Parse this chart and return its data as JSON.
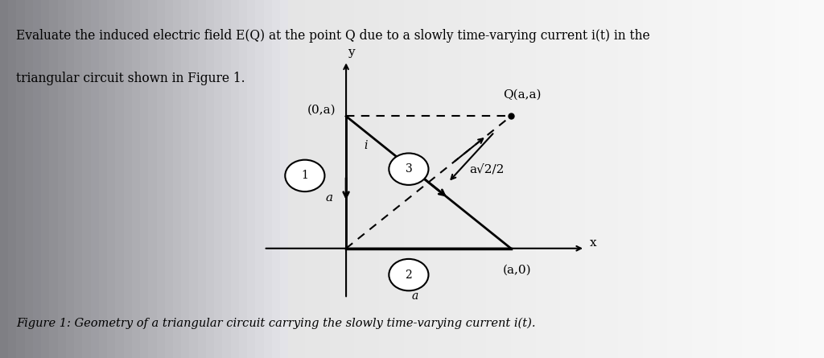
{
  "fig_width": 10.24,
  "fig_height": 4.45,
  "bg_left_color": "#8a8a9a",
  "bg_right_color": "#d8d8d8",
  "bg_mid_color": "#e8e8ea",
  "title_text_line1": "Evaluate the induced electric field E(Q) at the point Q due to a slowly time-varying current i(t) in the",
  "title_text_line2": "triangular circuit shown in Figure 1.",
  "caption_text": "Figure 1: Geometry of a triangular circuit carrying the slowly time-varying current i(t).",
  "label_Q": "Q(a,a)",
  "label_0a": "(0,a)",
  "label_a0": "(a,0)",
  "label_sqrt2": "a√2/2",
  "label_a_side": "a",
  "label_a_bottom": "a",
  "label_x": "x",
  "label_y": "y",
  "label_i": "i",
  "circle_label_1": "1",
  "circle_label_2": "2",
  "circle_label_3": "3"
}
